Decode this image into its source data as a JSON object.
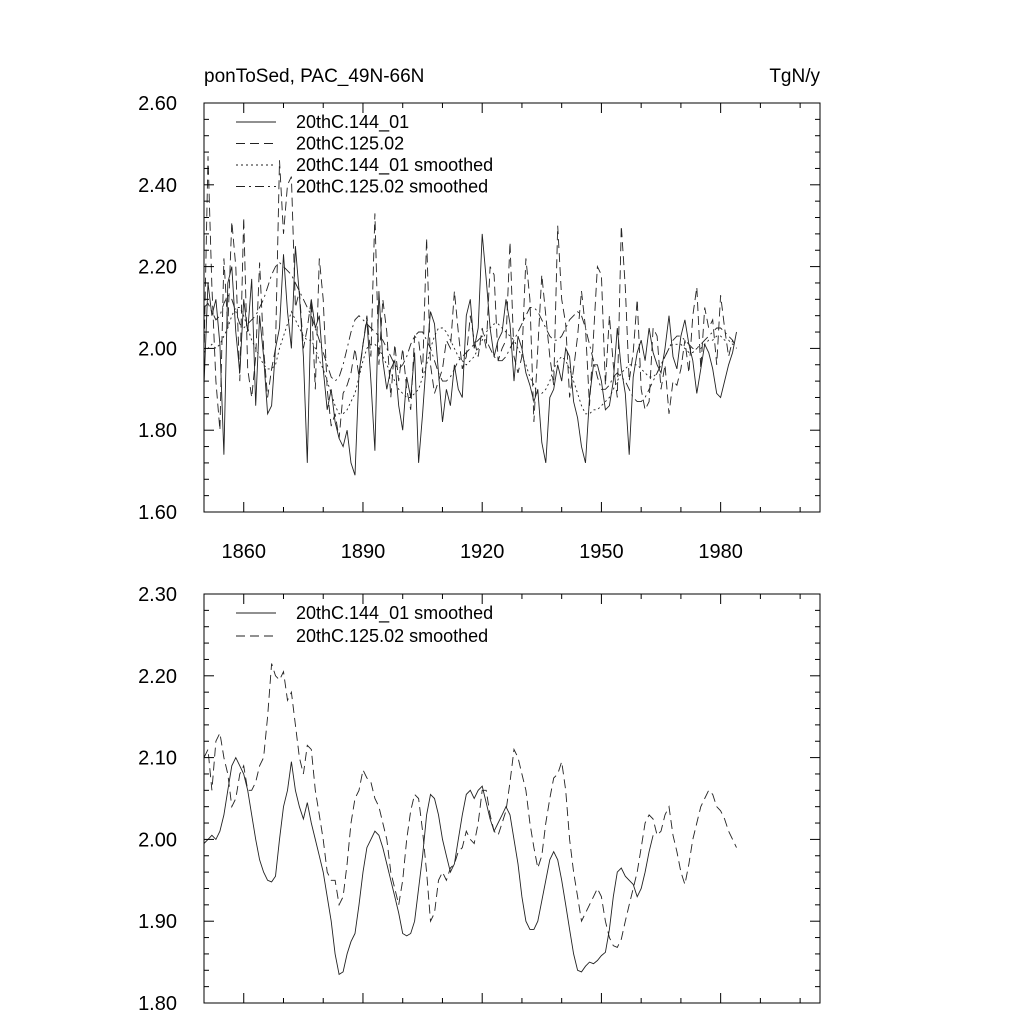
{
  "chart_data": [
    {
      "type": "line",
      "title": "ponToSed, PAC_49N-66N",
      "units": "TgN/y",
      "xlabel": "",
      "ylabel": "",
      "xlim": [
        1850,
        2005
      ],
      "ylim": [
        1.6,
        2.6
      ],
      "xticks": [
        1860,
        1890,
        1920,
        1950,
        1980
      ],
      "xtick_labels": [
        "1860",
        "1890",
        "1920",
        "1950",
        "1980"
      ],
      "yticks": [
        1.6,
        1.8,
        2.0,
        2.2,
        2.4,
        2.6
      ],
      "ytick_labels": [
        "1.60",
        "1.80",
        "2.00",
        "2.20",
        "2.40",
        "2.60"
      ],
      "legend_position": "top-left",
      "series": [
        {
          "name": "20thC.144_01",
          "style": "solid",
          "x_start": 1850,
          "values": [
            1.91,
            2.16,
            2.08,
            2.12,
            2.01,
            1.74,
            2.16,
            2.2,
            2.04,
            1.94,
            2.12,
            2.04,
            2.17,
            1.86,
            2.08,
            1.98,
            1.84,
            1.86,
            2.0,
            2.05,
            2.23,
            2.09,
            2.0,
            2.25,
            2.13,
            1.98,
            1.72,
            2.12,
            2.05,
            2.08,
            1.95,
            1.85,
            1.9,
            1.82,
            1.78,
            1.76,
            1.8,
            1.72,
            1.69,
            1.94,
            2.01,
            2.07,
            1.92,
            1.75,
            2.14,
            1.97,
            1.9,
            1.95,
            1.97,
            1.86,
            1.8,
            1.93,
            1.88,
            1.99,
            1.72,
            1.84,
            1.98,
            2.09,
            2.06,
            1.94,
            1.82,
            1.9,
            1.86,
            1.96,
            1.9,
            1.88,
            2.08,
            2.12,
            2.0,
            2.05,
            2.28,
            2.17,
            2.05,
            1.98,
            2.02,
            2.04,
            2.12,
            2.06,
            1.92,
            2.03,
            2.0,
            1.94,
            1.91,
            1.87,
            1.9,
            1.77,
            1.72,
            1.88,
            1.9,
            1.96,
            1.92,
            2.0,
            1.98,
            1.87,
            1.83,
            1.76,
            1.72,
            1.88,
            1.96,
            1.96,
            1.92,
            1.85,
            1.86,
            1.92,
            2.05,
            1.95,
            1.89,
            1.74,
            1.93,
            1.99,
            2.02,
            1.97,
            2.05,
            1.99,
            1.96,
            1.94,
            2.0,
            2.08,
            1.98,
            1.95,
            2.03,
            2.07,
            2.01,
            1.97,
            1.89,
            1.95,
            2.01,
            1.99,
            1.95,
            1.89,
            1.88,
            1.92,
            1.96,
            1.99,
            2.04
          ]
        },
        {
          "name": "20thC.125.02",
          "style": "dashed",
          "x_start": 1850,
          "values": [
            1.98,
            2.47,
            2.15,
            1.92,
            1.8,
            2.22,
            2.05,
            2.31,
            2.2,
            1.92,
            2.32,
            1.95,
            1.88,
            1.98,
            2.21,
            2.0,
            1.88,
            1.95,
            2.0,
            2.46,
            2.28,
            2.4,
            2.42,
            2.1,
            2.14,
            2.0,
            2.05,
            2.12,
            1.9,
            2.22,
            2.12,
            1.9,
            1.81,
            1.84,
            1.78,
            1.89,
            1.91,
            1.94,
            2.0,
            1.93,
            2.01,
            2.08,
            1.98,
            2.33,
            1.96,
            2.12,
            2.04,
            1.88,
            2.01,
            1.92,
            2.0,
            1.9,
            1.85,
            2.03,
            2.02,
            1.94,
            2.27,
            1.96,
            1.89,
            1.92,
            1.95,
            2.02,
            2.0,
            2.14,
            2.04,
            1.95,
            1.98,
            2.08,
            2.02,
            1.98,
            2.05,
            2.0,
            2.2,
            2.18,
            1.97,
            2.0,
            2.02,
            2.26,
            1.98,
            1.94,
            1.98,
            2.22,
            2.12,
            1.82,
            2.0,
            2.18,
            2.08,
            1.98,
            1.91,
            2.3,
            2.12,
            2.06,
            1.88,
            1.95,
            2.03,
            2.14,
            2.05,
            1.86,
            2.03,
            2.2,
            2.18,
            1.91,
            2.08,
            1.96,
            1.88,
            2.3,
            2.15,
            1.92,
            1.99,
            2.12,
            1.9,
            1.85,
            1.87,
            2.05,
            2.03,
            1.9,
            1.96,
            1.84,
            1.92,
            1.91,
            1.95,
            2.02,
            1.94,
            2.08,
            2.15,
            1.95,
            2.1,
            2.05,
            2.07,
            1.96,
            2.13,
            2.05,
            1.98,
            2.02
          ]
        },
        {
          "name": "20thC.144_01 smoothed",
          "style": "dotted",
          "x_start": 1850,
          "values": [
            1.99,
            2.0,
            2.01,
            2.0,
            2.01,
            2.03,
            2.05,
            2.08,
            2.1,
            2.1,
            2.08,
            2.05,
            2.02,
            2.0,
            1.98,
            1.96,
            1.95,
            1.95,
            1.96,
            2.0,
            2.03,
            2.06,
            2.09,
            2.07,
            2.05,
            2.03,
            2.02,
            2.02,
            2.0,
            1.97,
            1.95,
            1.92,
            1.89,
            1.86,
            1.84,
            1.84,
            1.85,
            1.87,
            1.89,
            1.93,
            1.97,
            2.0,
            2.01,
            2.01,
            2.0,
            1.98,
            1.96,
            1.94,
            1.92,
            1.9,
            1.89,
            1.88,
            1.88,
            1.89,
            1.9,
            1.93,
            1.96,
            2.0,
            2.03,
            2.05,
            2.05,
            2.04,
            2.02,
            2.0,
            1.98,
            1.97,
            1.96,
            1.97,
            1.98,
            2.0,
            2.02,
            2.04,
            2.05,
            2.06,
            2.06,
            2.05,
            2.04,
            2.03,
            2.02,
            2.0,
            1.98,
            1.96,
            1.93,
            1.91,
            1.89,
            1.89,
            1.9,
            1.92,
            1.95,
            1.97,
            1.98,
            1.97,
            1.95,
            1.92,
            1.89,
            1.86,
            1.84,
            1.84,
            1.85,
            1.85,
            1.86,
            1.87,
            1.88,
            1.9,
            1.92,
            1.94,
            1.95,
            1.96,
            1.96,
            1.96,
            1.95,
            1.94,
            1.93,
            1.93,
            1.94,
            1.96,
            1.98,
            2.0,
            2.01,
            2.01,
            2.01,
            2.0,
            1.99,
            1.99,
            2.0,
            2.0,
            2.01,
            2.02,
            2.02,
            2.03,
            2.03,
            2.02,
            2.02,
            2.01,
            2.01
          ]
        },
        {
          "name": "20thC.125.02 smoothed",
          "style": "dashdot",
          "x_start": 1850,
          "values": [
            2.1,
            2.11,
            2.09,
            2.07,
            2.08,
            2.11,
            2.13,
            2.12,
            2.09,
            2.06,
            2.05,
            2.06,
            2.07,
            2.08,
            2.1,
            2.12,
            2.15,
            2.18,
            2.2,
            2.21,
            2.2,
            2.19,
            2.18,
            2.16,
            2.14,
            2.12,
            2.1,
            2.08,
            2.05,
            2.02,
            1.99,
            1.96,
            1.93,
            1.92,
            1.93,
            1.96,
            2.0,
            2.04,
            2.07,
            2.08,
            2.07,
            2.06,
            2.05,
            2.04,
            2.03,
            2.02,
            2.0,
            1.98,
            1.96,
            1.95,
            1.96,
            1.98,
            2.01,
            2.03,
            2.04,
            2.04,
            2.02,
            2.0,
            1.97,
            1.94,
            1.92,
            1.92,
            1.93,
            1.95,
            1.97,
            1.98,
            1.99,
            2.0,
            2.01,
            2.02,
            2.03,
            2.02,
            2.0,
            1.98,
            1.97,
            1.97,
            1.98,
            2.0,
            2.02,
            2.04,
            2.06,
            2.08,
            2.1,
            2.1,
            2.09,
            2.07,
            2.05,
            2.03,
            2.02,
            2.02,
            2.03,
            2.05,
            2.07,
            2.08,
            2.09,
            2.08,
            2.05,
            2.01,
            1.97,
            1.93,
            1.9,
            1.9,
            1.91,
            1.93,
            1.94,
            1.93,
            1.92,
            1.9,
            1.88,
            1.87,
            1.87,
            1.88,
            1.9,
            1.92,
            1.94,
            1.96,
            1.98,
            2.0,
            2.02,
            2.03,
            2.03,
            2.02,
            2.01,
            2.0,
            2.0,
            2.01,
            2.02,
            2.03,
            2.04,
            2.05,
            2.05,
            2.04,
            2.03,
            2.02,
            2.0
          ]
        }
      ]
    },
    {
      "type": "line",
      "title": "",
      "xlabel": "",
      "ylabel": "",
      "xlim": [
        1850,
        2005
      ],
      "ylim": [
        1.8,
        2.3
      ],
      "xticks": [
        1860,
        1890,
        1920,
        1950,
        1980
      ],
      "yticks": [
        1.8,
        1.9,
        2.0,
        2.1,
        2.2,
        2.3
      ],
      "ytick_labels": [
        "1.80",
        "1.90",
        "2.00",
        "2.10",
        "2.20",
        "2.30"
      ],
      "legend_position": "top-left",
      "series": [
        {
          "name": "20thC.144_01 smoothed",
          "style": "solid",
          "x_start": 1850,
          "values": [
            1.995,
            2.0,
            2.005,
            2.0,
            2.01,
            2.03,
            2.06,
            2.09,
            2.1,
            2.09,
            2.08,
            2.06,
            2.03,
            2.0,
            1.975,
            1.96,
            1.95,
            1.948,
            1.955,
            2.0,
            2.04,
            2.06,
            2.095,
            2.06,
            2.04,
            2.025,
            2.045,
            2.02,
            2.0,
            1.98,
            1.96,
            1.93,
            1.9,
            1.86,
            1.835,
            1.838,
            1.86,
            1.875,
            1.885,
            1.92,
            1.96,
            1.99,
            2.0,
            2.01,
            2.005,
            1.99,
            1.97,
            1.95,
            1.93,
            1.91,
            1.885,
            1.882,
            1.885,
            1.9,
            1.94,
            1.98,
            2.03,
            2.055,
            2.05,
            2.03,
            2.0,
            1.98,
            1.96,
            1.97,
            2.0,
            2.03,
            2.055,
            2.06,
            2.05,
            2.06,
            2.065,
            2.045,
            2.025,
            2.01,
            2.02,
            2.03,
            2.04,
            2.03,
            2.0,
            1.97,
            1.93,
            1.9,
            1.89,
            1.89,
            1.9,
            1.925,
            1.95,
            1.975,
            1.985,
            1.975,
            1.95,
            1.92,
            1.89,
            1.86,
            1.84,
            1.838,
            1.845,
            1.85,
            1.848,
            1.852,
            1.858,
            1.862,
            1.89,
            1.93,
            1.96,
            1.965,
            1.955,
            1.95,
            1.945,
            1.93,
            1.94,
            1.96,
            1.985,
            2.005
          ]
        },
        {
          "name": "20thC.125.02 smoothed",
          "style": "dashed",
          "x_start": 1850,
          "values": [
            2.1,
            2.11,
            2.06,
            2.12,
            2.13,
            2.1,
            2.08,
            2.04,
            2.05,
            2.08,
            2.09,
            2.06,
            2.06,
            2.07,
            2.09,
            2.1,
            2.15,
            2.215,
            2.2,
            2.195,
            2.205,
            2.17,
            2.18,
            2.14,
            2.1,
            2.08,
            2.115,
            2.11,
            2.06,
            2.03,
            2.0,
            1.96,
            1.95,
            1.95,
            1.92,
            1.93,
            1.97,
            2.02,
            2.05,
            2.06,
            2.085,
            2.075,
            2.07,
            2.05,
            2.04,
            2.02,
            2.0,
            1.96,
            1.94,
            1.92,
            1.95,
            2.0,
            2.035,
            2.055,
            2.05,
            2.01,
            1.96,
            1.9,
            1.91,
            1.95,
            1.96,
            1.95,
            1.965,
            1.97,
            1.985,
            1.99,
            2.01,
            2.0,
            1.995,
            2.02,
            2.06,
            2.06,
            2.03,
            2.01,
            2.005,
            2.02,
            2.035,
            2.07,
            2.11,
            2.1,
            2.08,
            2.06,
            2.02,
            1.99,
            1.965,
            1.98,
            2.02,
            2.05,
            2.075,
            2.08,
            2.095,
            2.06,
            2.0,
            1.96,
            1.93,
            1.9,
            1.91,
            1.92,
            1.93,
            1.94,
            1.93,
            1.9,
            1.88,
            1.87,
            1.868,
            1.878,
            1.9,
            1.92,
            1.94,
            1.96,
            1.99,
            2.02,
            2.03,
            2.025,
            2.005,
            2.01,
            2.03,
            2.04,
            2.005,
            1.985,
            1.96,
            1.945,
            1.97,
            2.0,
            2.02,
            2.04,
            2.05,
            2.06,
            2.055,
            2.04,
            2.035,
            2.025,
            2.01,
            2.0,
            1.99
          ]
        }
      ]
    }
  ]
}
